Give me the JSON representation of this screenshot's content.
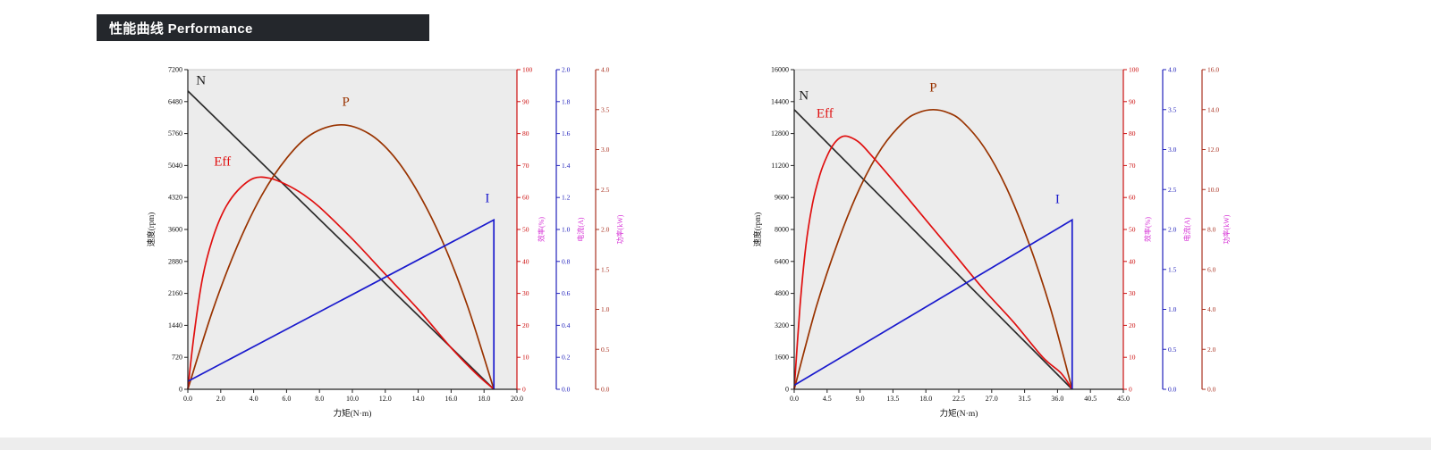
{
  "header": {
    "title": "性能曲线 Performance"
  },
  "colors": {
    "header_bg": "#24272c",
    "header_text": "#ffffff",
    "plot_bg": "#ececec",
    "axis_label_magenta": "#d633d6",
    "footer_bg": "#ededed",
    "series_n": "#2b2b2b",
    "series_p": "#993300",
    "series_eff": "#e01010",
    "series_i": "#1a1acd"
  },
  "chart_data": [
    {
      "type": "line",
      "title": "",
      "plot_bg": "#ececec",
      "x_axis": {
        "label": "力矩(N·m)",
        "min": 0,
        "max": 20,
        "ticks": [
          "0.0",
          "2.0",
          "4.0",
          "6.0",
          "8.0",
          "10.0",
          "12.0",
          "14.0",
          "16.0",
          "18.0",
          "20.0"
        ]
      },
      "left_axis": {
        "label": "速度(rpm)",
        "min": 0,
        "max": 7200,
        "color": "#222222",
        "ticks": [
          "0",
          "720",
          "1440",
          "2160",
          "2880",
          "3600",
          "4320",
          "5040",
          "5760",
          "6480",
          "7200"
        ]
      },
      "right_axes": [
        {
          "id": "r0",
          "label": "效率(%)",
          "min": 0,
          "max": 100,
          "color": "#cc1111",
          "ticks": [
            "0",
            "10",
            "20",
            "30",
            "40",
            "50",
            "60",
            "70",
            "80",
            "90",
            "100"
          ]
        },
        {
          "id": "r1",
          "label": "电流(A)",
          "min": 0,
          "max": 2,
          "color": "#2222bb",
          "ticks": [
            "0.0",
            "0.2",
            "0.4",
            "0.6",
            "0.8",
            "1.0",
            "1.2",
            "1.4",
            "1.6",
            "1.8",
            "2.0"
          ]
        },
        {
          "id": "r2",
          "label": "功率(kW)",
          "min": 0,
          "max": 4,
          "color": "#aa3322",
          "ticks": [
            "0.0",
            "0.5",
            "1.0",
            "1.5",
            "2.0",
            "2.5",
            "3.0",
            "3.5",
            "4.0"
          ]
        }
      ],
      "series": [
        {
          "name": "N",
          "axis": "left",
          "color": "#2b2b2b",
          "smooth": false,
          "points": [
            [
              0,
              6720
            ],
            [
              18.6,
              0
            ]
          ]
        },
        {
          "name": "P",
          "axis": "r2",
          "color": "#993300",
          "smooth": true,
          "points": [
            [
              0,
              0
            ],
            [
              1.5,
              0.98
            ],
            [
              3,
              1.79
            ],
            [
              4.5,
              2.43
            ],
            [
              6,
              2.89
            ],
            [
              7.5,
              3.19
            ],
            [
              9.3,
              3.31
            ],
            [
              11,
              3.2
            ],
            [
              12.5,
              2.92
            ],
            [
              14,
              2.46
            ],
            [
              15.5,
              1.84
            ],
            [
              17,
              1.04
            ],
            [
              18.6,
              0
            ]
          ]
        },
        {
          "name": "Eff",
          "axis": "r0",
          "color": "#e01010",
          "smooth": true,
          "points": [
            [
              0,
              0
            ],
            [
              0.4,
              18
            ],
            [
              0.9,
              35
            ],
            [
              1.5,
              47
            ],
            [
              2.2,
              56
            ],
            [
              3,
              62
            ],
            [
              4,
              66
            ],
            [
              5,
              66
            ],
            [
              6,
              64
            ],
            [
              7,
              61
            ],
            [
              8,
              57
            ],
            [
              10,
              47
            ],
            [
              12,
              36
            ],
            [
              14,
              25
            ],
            [
              16,
              13
            ],
            [
              17.5,
              5
            ],
            [
              18.6,
              0
            ]
          ]
        },
        {
          "name": "I",
          "axis": "r1",
          "color": "#1a1acd",
          "smooth": false,
          "points": [
            [
              0,
              0.05
            ],
            [
              18.6,
              1.06
            ],
            [
              18.6,
              0
            ]
          ]
        }
      ],
      "annotations": [
        {
          "text": "N",
          "x": 0.8,
          "v": 6870,
          "axis": "left",
          "color": "#222222"
        },
        {
          "text": "P",
          "x": 9.6,
          "v": 3.55,
          "axis": "r2",
          "color": "#993300"
        },
        {
          "text": "Eff",
          "x": 2.1,
          "v": 70,
          "axis": "r0",
          "color": "#e01010"
        },
        {
          "text": "I",
          "x": 18.2,
          "v": 1.17,
          "axis": "r1",
          "color": "#1a1acd"
        }
      ]
    },
    {
      "type": "line",
      "title": "",
      "plot_bg": "#ececec",
      "x_axis": {
        "label": "力矩(N·m)",
        "min": 0,
        "max": 45,
        "ticks": [
          "0.0",
          "4.5",
          "9.0",
          "13.5",
          "18.0",
          "22.5",
          "27.0",
          "31.5",
          "36.0",
          "40.5",
          "45.0"
        ]
      },
      "left_axis": {
        "label": "速度(rpm)",
        "min": 0,
        "max": 16000,
        "color": "#222222",
        "ticks": [
          "0",
          "1600",
          "3200",
          "4800",
          "6400",
          "8000",
          "9600",
          "11200",
          "12800",
          "14400",
          "16000"
        ]
      },
      "right_axes": [
        {
          "id": "r0",
          "label": "效率(%)",
          "min": 0,
          "max": 100,
          "color": "#cc1111",
          "ticks": [
            "0",
            "10",
            "20",
            "30",
            "40",
            "50",
            "60",
            "70",
            "80",
            "90",
            "100"
          ]
        },
        {
          "id": "r1",
          "label": "电流(A)",
          "min": 0,
          "max": 4,
          "color": "#2222bb",
          "ticks": [
            "0.0",
            "0.5",
            "1.0",
            "1.5",
            "2.0",
            "2.5",
            "3.0",
            "3.5",
            "4.0"
          ]
        },
        {
          "id": "r2",
          "label": "功率(kW)",
          "min": 0,
          "max": 16,
          "color": "#aa3322",
          "ticks": [
            "0.0",
            "2.0",
            "4.0",
            "6.0",
            "8.0",
            "10.0",
            "12.0",
            "14.0",
            "16.0"
          ]
        }
      ],
      "series": [
        {
          "name": "N",
          "axis": "left",
          "color": "#2b2b2b",
          "smooth": false,
          "points": [
            [
              0,
              14000
            ],
            [
              38,
              0
            ]
          ]
        },
        {
          "name": "P",
          "axis": "r2",
          "color": "#993300",
          "smooth": true,
          "points": [
            [
              0,
              0
            ],
            [
              3,
              4.1
            ],
            [
              6,
              7.4
            ],
            [
              9,
              10.1
            ],
            [
              12,
              12.1
            ],
            [
              15,
              13.4
            ],
            [
              17,
              13.85
            ],
            [
              19,
              14.0
            ],
            [
              21,
              13.85
            ],
            [
              23,
              13.4
            ],
            [
              26,
              12.1
            ],
            [
              29,
              10.1
            ],
            [
              32,
              7.4
            ],
            [
              35,
              4.1
            ],
            [
              38,
              0
            ]
          ]
        },
        {
          "name": "Eff",
          "axis": "r0",
          "color": "#e01010",
          "smooth": true,
          "points": [
            [
              0,
              0
            ],
            [
              0.8,
              26
            ],
            [
              1.6,
              45
            ],
            [
              2.5,
              58
            ],
            [
              3.5,
              67
            ],
            [
              4.5,
              73
            ],
            [
              5.5,
              77
            ],
            [
              6.5,
              79
            ],
            [
              7.5,
              79
            ],
            [
              9,
              77
            ],
            [
              11,
              72
            ],
            [
              14,
              64
            ],
            [
              18,
              53
            ],
            [
              22,
              42
            ],
            [
              26,
              31
            ],
            [
              30,
              21
            ],
            [
              34,
              10
            ],
            [
              36.5,
              5
            ],
            [
              38,
              0
            ]
          ]
        },
        {
          "name": "I",
          "axis": "r1",
          "color": "#1a1acd",
          "smooth": false,
          "points": [
            [
              0,
              0.05
            ],
            [
              38,
              2.12
            ],
            [
              38,
              0
            ]
          ]
        }
      ],
      "annotations": [
        {
          "text": "N",
          "x": 1.3,
          "v": 14500,
          "axis": "left",
          "color": "#222222"
        },
        {
          "text": "Eff",
          "x": 4.2,
          "v": 85,
          "axis": "r0",
          "color": "#e01010"
        },
        {
          "text": "P",
          "x": 19,
          "v": 14.9,
          "axis": "r2",
          "color": "#993300"
        },
        {
          "text": "I",
          "x": 36,
          "v": 2.33,
          "axis": "r1",
          "color": "#1a1acd"
        }
      ]
    }
  ]
}
